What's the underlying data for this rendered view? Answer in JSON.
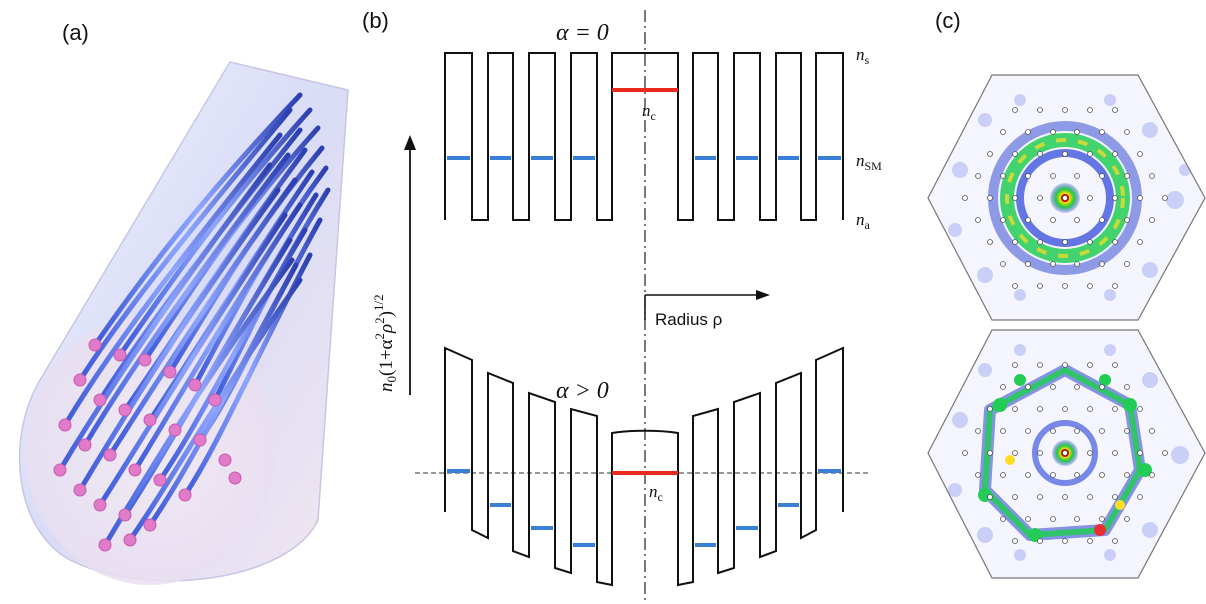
{
  "panels": {
    "a": {
      "label": "(a)"
    },
    "b": {
      "label": "(b)",
      "top_condition": "α = 0",
      "bottom_condition": "α > 0",
      "level_labels": {
        "ns_base": "n",
        "ns_sub": "s",
        "nsm_base": "n",
        "nsm_sub": "SM",
        "na_base": "n",
        "na_sub": "a",
        "nc_base": "n",
        "nc_sub": "c"
      },
      "y_axis_label": "n0(1+α²ρ²)^1/2",
      "y_axis_parts": {
        "n": "n",
        "n_sub": "0",
        "body": "(1+α",
        "sup2": "2",
        "rho": "ρ",
        "sup2b": "2",
        "close": ")",
        "sup_half": "1/2"
      },
      "radius_label": "Radius ρ",
      "colors": {
        "core_level": "#e8291c",
        "sm_level": "#3a7fd6",
        "profile": "#111111"
      }
    },
    "c": {
      "label": "(c)"
    }
  }
}
